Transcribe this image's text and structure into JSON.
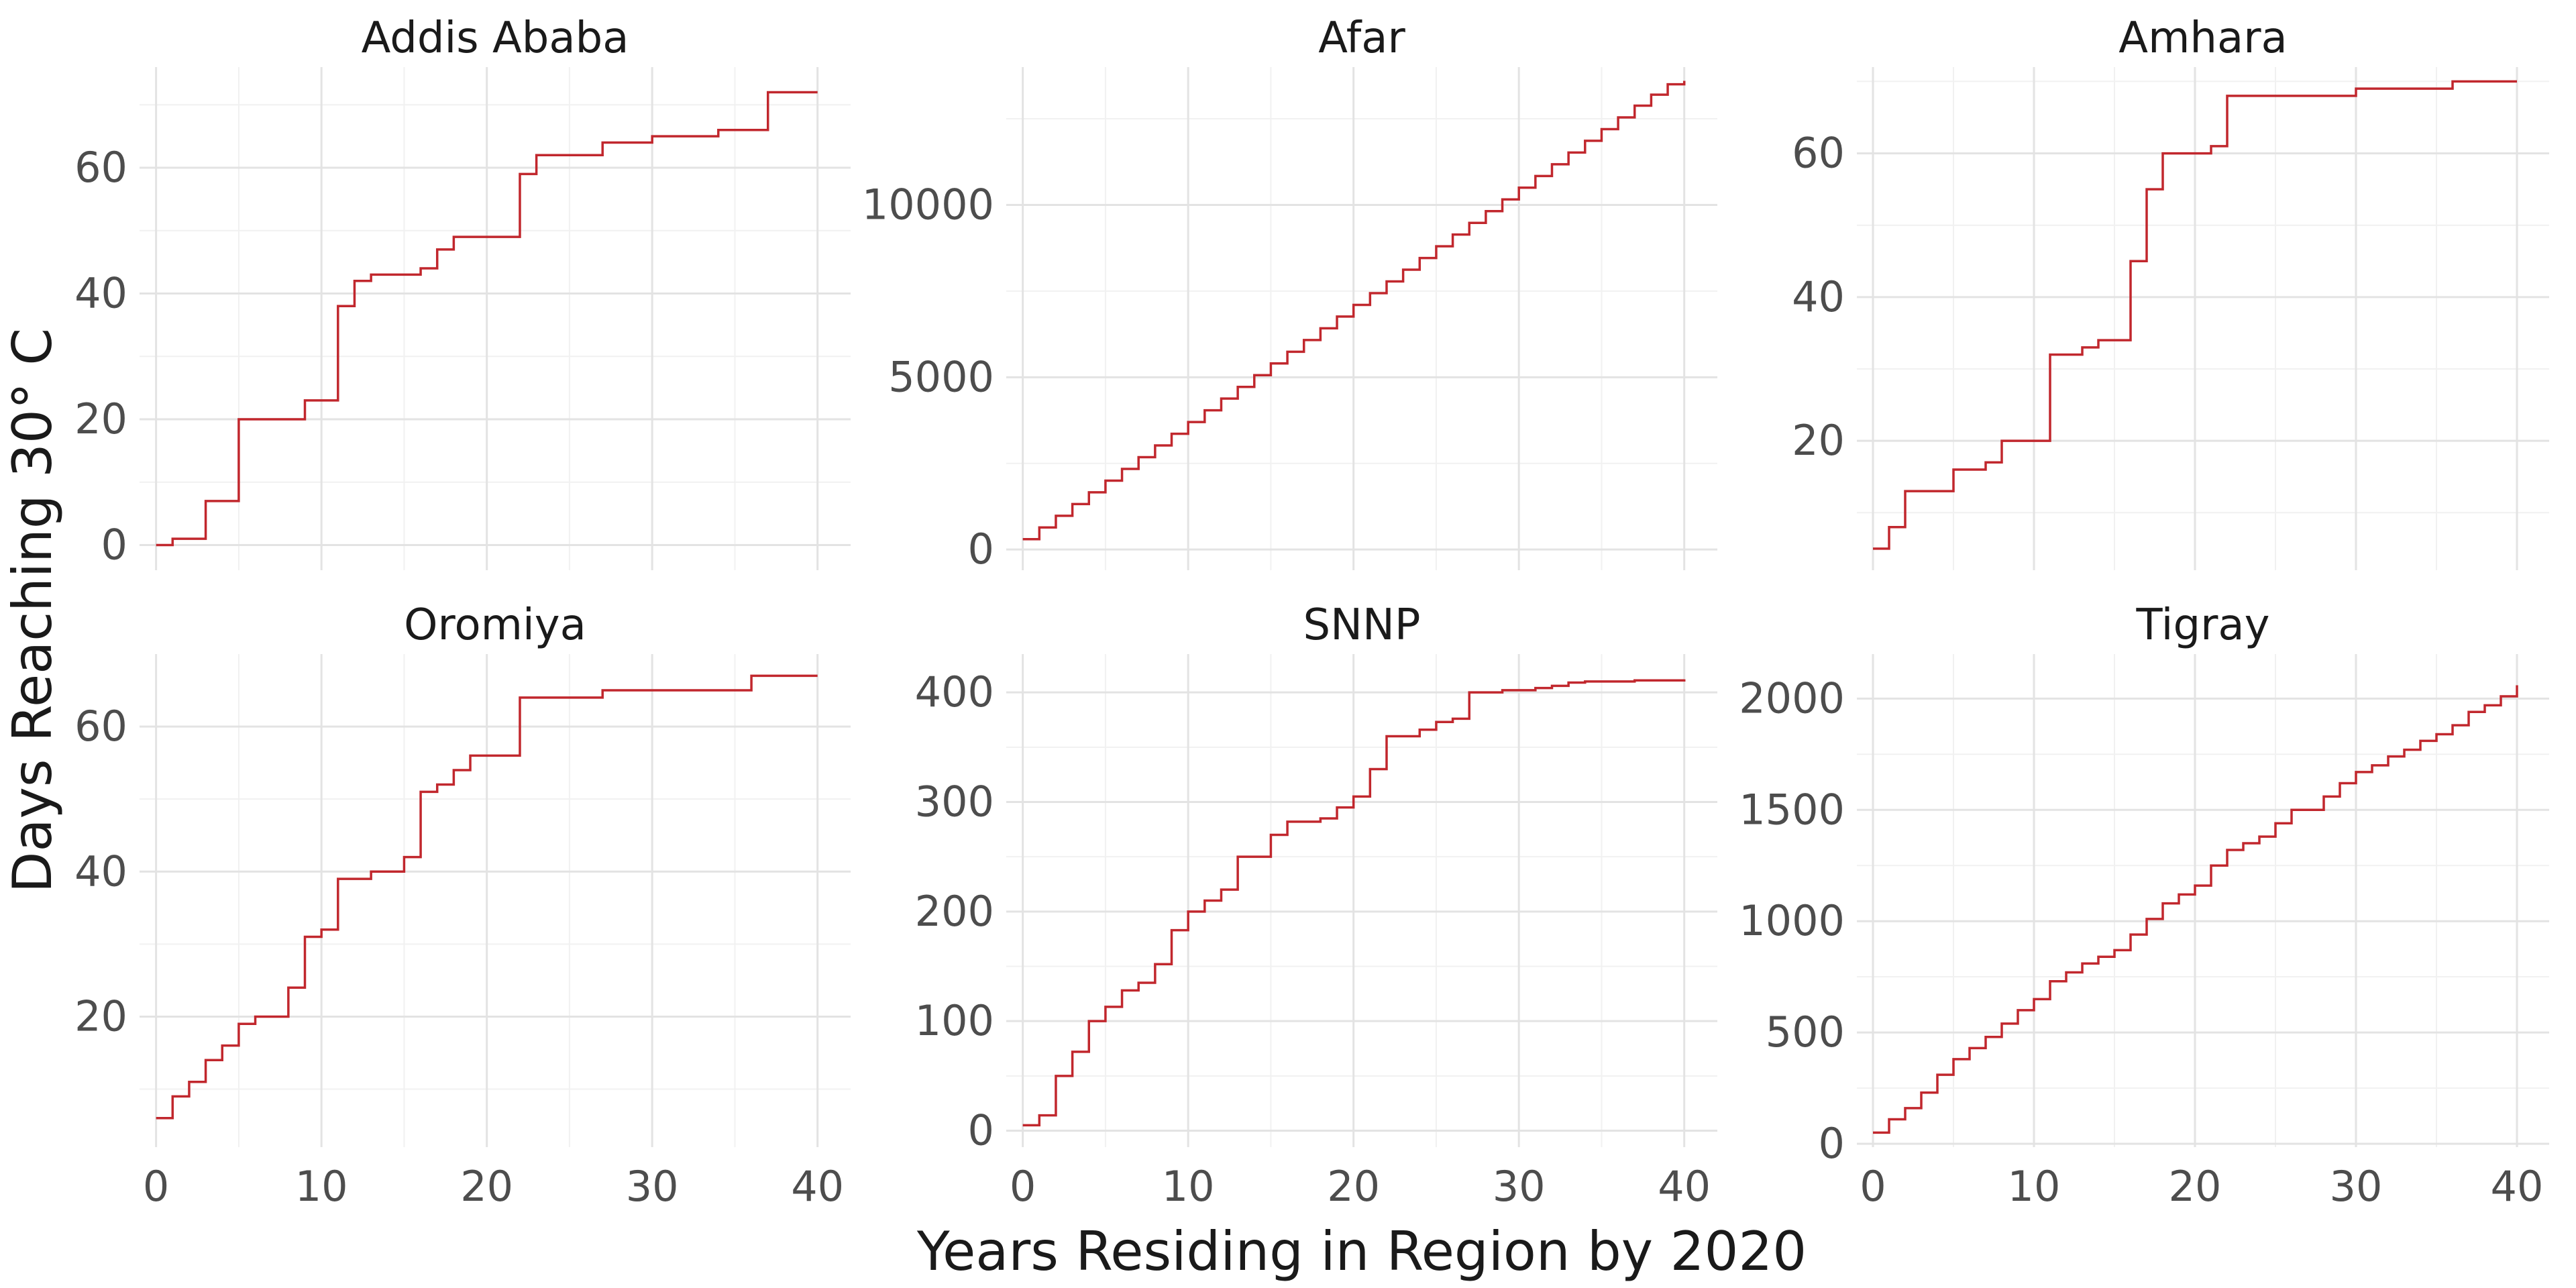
{
  "chart_data": {
    "type": "line",
    "style": "step",
    "facet_layout": "2 rows x 3 columns",
    "xlabel": "Years Residing in Region by 2020",
    "ylabel": "Days Reaching 30° C",
    "line_color": "#c1272d",
    "x_ticks": [
      0,
      10,
      20,
      30,
      40
    ],
    "xlim": [
      -1,
      42
    ],
    "grid": true,
    "panels": [
      {
        "title": "Addis Ababa",
        "ylim": [
          -4,
          76
        ],
        "y_ticks": [
          0,
          20,
          40,
          60
        ],
        "x": [
          0,
          1,
          2,
          3,
          4,
          5,
          6,
          7,
          8,
          9,
          10,
          11,
          12,
          13,
          14,
          15,
          16,
          17,
          18,
          19,
          20,
          21,
          22,
          23,
          24,
          25,
          26,
          27,
          28,
          29,
          30,
          31,
          32,
          33,
          34,
          35,
          36,
          37,
          38,
          39,
          40
        ],
        "y": [
          0,
          1,
          1,
          7,
          7,
          20,
          20,
          20,
          20,
          23,
          23,
          38,
          42,
          43,
          43,
          43,
          44,
          47,
          49,
          49,
          49,
          49,
          59,
          62,
          62,
          62,
          62,
          64,
          64,
          64,
          65,
          65,
          65,
          65,
          66,
          66,
          66,
          72,
          72,
          72,
          72
        ]
      },
      {
        "title": "Afar",
        "ylim": [
          -600,
          14000
        ],
        "y_ticks": [
          0,
          5000,
          10000
        ],
        "x": [
          0,
          1,
          2,
          3,
          4,
          5,
          6,
          7,
          8,
          9,
          10,
          11,
          12,
          13,
          14,
          15,
          16,
          17,
          18,
          19,
          20,
          21,
          22,
          23,
          24,
          25,
          26,
          27,
          28,
          29,
          30,
          31,
          32,
          33,
          34,
          35,
          36,
          37,
          38,
          39,
          40
        ],
        "y": [
          300,
          640,
          980,
          1320,
          1660,
          2000,
          2340,
          2680,
          3020,
          3360,
          3700,
          4040,
          4380,
          4720,
          5060,
          5400,
          5740,
          6080,
          6420,
          6760,
          7100,
          7440,
          7780,
          8120,
          8460,
          8800,
          9140,
          9480,
          9820,
          10160,
          10500,
          10840,
          11180,
          11520,
          11860,
          12200,
          12540,
          12880,
          13200,
          13500,
          13600
        ]
      },
      {
        "title": "Amhara",
        "ylim": [
          2,
          72
        ],
        "y_ticks": [
          20,
          40,
          60
        ],
        "x": [
          0,
          1,
          2,
          3,
          4,
          5,
          6,
          7,
          8,
          9,
          10,
          11,
          12,
          13,
          14,
          15,
          16,
          17,
          18,
          19,
          20,
          21,
          22,
          23,
          24,
          25,
          26,
          27,
          28,
          29,
          30,
          31,
          32,
          33,
          34,
          35,
          36,
          37,
          38,
          39,
          40
        ],
        "y": [
          5,
          8,
          13,
          13,
          13,
          16,
          16,
          17,
          20,
          20,
          20,
          32,
          32,
          33,
          34,
          34,
          45,
          55,
          60,
          60,
          60,
          61,
          68,
          68,
          68,
          68,
          68,
          68,
          68,
          68,
          69,
          69,
          69,
          69,
          69,
          69,
          70,
          70,
          70,
          70,
          70
        ]
      },
      {
        "title": "Oromiya",
        "ylim": [
          2,
          70
        ],
        "y_ticks": [
          20,
          40,
          60
        ],
        "x": [
          0,
          1,
          2,
          3,
          4,
          5,
          6,
          7,
          8,
          9,
          10,
          11,
          12,
          13,
          14,
          15,
          16,
          17,
          18,
          19,
          20,
          21,
          22,
          23,
          24,
          25,
          26,
          27,
          28,
          29,
          30,
          31,
          32,
          33,
          34,
          35,
          36,
          37,
          38,
          39,
          40
        ],
        "y": [
          6,
          9,
          11,
          14,
          16,
          19,
          20,
          20,
          24,
          31,
          32,
          39,
          39,
          40,
          40,
          42,
          51,
          52,
          54,
          56,
          56,
          56,
          64,
          64,
          64,
          64,
          64,
          65,
          65,
          65,
          65,
          65,
          65,
          65,
          65,
          65,
          67,
          67,
          67,
          67,
          67
        ]
      },
      {
        "title": "SNNP",
        "ylim": [
          -15,
          435
        ],
        "y_ticks": [
          0,
          100,
          200,
          300,
          400
        ],
        "x": [
          0,
          1,
          2,
          3,
          4,
          5,
          6,
          7,
          8,
          9,
          10,
          11,
          12,
          13,
          14,
          15,
          16,
          17,
          18,
          19,
          20,
          21,
          22,
          23,
          24,
          25,
          26,
          27,
          28,
          29,
          30,
          31,
          32,
          33,
          34,
          35,
          36,
          37,
          38,
          39,
          40
        ],
        "y": [
          5,
          14,
          50,
          72,
          100,
          113,
          128,
          135,
          152,
          183,
          200,
          210,
          220,
          250,
          250,
          270,
          282,
          282,
          285,
          295,
          305,
          330,
          360,
          360,
          366,
          373,
          376,
          400,
          400,
          402,
          402,
          404,
          406,
          409,
          410,
          410,
          410,
          411,
          411,
          411,
          412
        ]
      },
      {
        "title": "Tigray",
        "ylim": [
          -15,
          2200
        ],
        "y_ticks": [
          0,
          500,
          1000,
          1500,
          2000
        ],
        "x": [
          0,
          1,
          2,
          3,
          4,
          5,
          6,
          7,
          8,
          9,
          10,
          11,
          12,
          13,
          14,
          15,
          16,
          17,
          18,
          19,
          20,
          21,
          22,
          23,
          24,
          25,
          26,
          27,
          28,
          29,
          30,
          31,
          32,
          33,
          34,
          35,
          36,
          37,
          38,
          39,
          40
        ],
        "y": [
          50,
          110,
          160,
          230,
          310,
          380,
          430,
          480,
          540,
          600,
          650,
          730,
          770,
          810,
          840,
          870,
          940,
          1010,
          1080,
          1120,
          1160,
          1250,
          1320,
          1350,
          1380,
          1440,
          1500,
          1500,
          1560,
          1620,
          1670,
          1700,
          1740,
          1770,
          1810,
          1840,
          1880,
          1940,
          1970,
          2010,
          2060
        ]
      }
    ]
  }
}
